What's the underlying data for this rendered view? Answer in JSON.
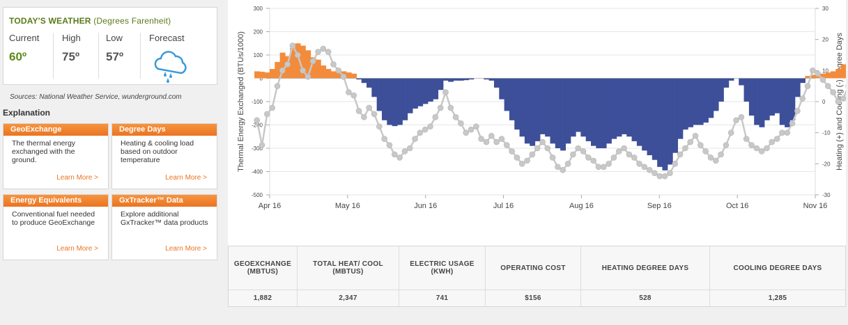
{
  "weather": {
    "title": "TODAY'S WEATHER",
    "subtitle": "(Degrees Farenheit)",
    "current_label": "Current",
    "current_value": "60º",
    "high_label": "High",
    "high_value": "75º",
    "low_label": "Low",
    "low_value": "57º",
    "forecast_label": "Forecast",
    "forecast_icon": "rain-cloud-icon",
    "sources": "Sources: National Weather Service, wunderground.com"
  },
  "explanation": {
    "title": "Explanation",
    "cards": [
      {
        "title": "GeoExchange",
        "body": "The thermal energy exchanged with the ground.",
        "more": "Learn More >"
      },
      {
        "title": "Degree Days",
        "body": "Heating & cooling load based on outdoor temperature",
        "more": "Learn More >"
      },
      {
        "title": "Energy Equivalents",
        "body": "Conventional fuel needed to produce GeoExchange",
        "more": "Learn More >"
      },
      {
        "title": "GxTracker™ Data",
        "body": "Explore additional GxTracker™ data products",
        "more": "Learn More >"
      }
    ]
  },
  "colors": {
    "accent_orange": "#ea7422",
    "heating_bar": "#f28c3c",
    "cooling_bar": "#3d4f99",
    "degree_days_marker": "#c8c8c8",
    "weather_green": "#5a7a1a"
  },
  "chart_data": {
    "type": "bar",
    "left_axis": {
      "label": "Thermal Energy Exchanged (BTUs/1000)",
      "min": -500,
      "max": 300,
      "ticks": [
        300,
        200,
        100,
        0,
        -100,
        -200,
        -300,
        -400,
        -500
      ]
    },
    "right_axis": {
      "label": "Heating (+) and Cooling (-) Degree Days",
      "min": -30,
      "max": 30,
      "ticks": [
        30,
        20,
        10,
        0,
        -10,
        -20,
        -30
      ]
    },
    "x_axis": {
      "ticks": [
        "Apr 16",
        "May 16",
        "Jun 16",
        "Jul 16",
        "Aug 16",
        "Sep 16",
        "Oct 16",
        "Nov 16"
      ]
    },
    "grid": true,
    "series": [
      {
        "type": "bar",
        "start": "2016-04-10",
        "values": [
          30,
          28,
          25,
          40,
          70,
          110,
          95,
          130,
          150,
          140,
          120,
          90,
          80,
          55,
          40,
          30,
          25,
          30,
          25,
          20,
          -5,
          -20,
          -40,
          -80,
          -140,
          -180,
          -200,
          -205,
          -200,
          -180,
          -150,
          -130,
          -120,
          -110,
          -100,
          -90,
          -50,
          -10,
          -15,
          -10,
          -10,
          -8,
          -5,
          null,
          null,
          -5,
          -10,
          -40,
          -90,
          -140,
          -180,
          -220,
          -250,
          -280,
          -290,
          -270,
          -240,
          -250,
          -280,
          -300,
          -310,
          -280,
          -250,
          -230,
          -250,
          -270,
          -290,
          -300,
          -300,
          -280,
          -260,
          -250,
          -240,
          -250,
          -270,
          -290,
          -310,
          -330,
          -350,
          -380,
          -395,
          -370,
          -320,
          -260,
          -220,
          -210,
          -200,
          -200,
          -190,
          -170,
          -140,
          -100,
          -40,
          -10,
          null,
          -30,
          -100,
          -160,
          -200,
          -210,
          -180,
          -160,
          -150,
          -200,
          -210,
          -180,
          -80,
          -20,
          10,
          15,
          20,
          20,
          25,
          30,
          40,
          60,
          70,
          80,
          60,
          30,
          15
        ]
      },
      {
        "type": "scatter",
        "start": "2016-04-10",
        "values": [
          -6,
          -14,
          -4,
          -2,
          5,
          10,
          12,
          18,
          15,
          10,
          8,
          13,
          16,
          17,
          16,
          12,
          10,
          8,
          3,
          2,
          -3,
          -5,
          -2,
          -4,
          -8,
          -12,
          -14,
          -17,
          -18,
          -16,
          -15,
          -12,
          -10,
          -9,
          -8,
          -5,
          -2,
          3,
          -2,
          -5,
          -7,
          -10,
          -9,
          -8,
          -12,
          -13,
          -11,
          -13,
          -12,
          -14,
          -16,
          -18,
          -20,
          -19,
          -17,
          -15,
          -13,
          -15,
          -18,
          -21,
          -22,
          -20,
          -17,
          -15,
          -16,
          -18,
          -19,
          -21,
          -21,
          -20,
          -18,
          -16,
          -15,
          -17,
          -18,
          -20,
          -21,
          -22,
          -23,
          -24,
          -24,
          -23,
          -20,
          -17,
          -15,
          -13,
          -11,
          -14,
          -16,
          -18,
          -19,
          -17,
          -14,
          -10,
          -6,
          -5,
          -12,
          -14,
          -15,
          -16,
          -15,
          -13,
          -12,
          -10,
          -10,
          -7,
          -3,
          1,
          5,
          10,
          9,
          7,
          5,
          3,
          0,
          1,
          5,
          10,
          15,
          12,
          7,
          3,
          0,
          -2,
          -5,
          -6,
          -4
        ]
      }
    ]
  },
  "stats": {
    "headers": [
      "GEOEXCHANGE (MBTUS)",
      "TOTAL HEAT/ COOL (MBTUS)",
      "ELECTRIC USAGE (KWH)",
      "OPERATING COST",
      "HEATING DEGREE DAYS",
      "COOLING DEGREE DAYS"
    ],
    "values": [
      "1,882",
      "2,347",
      "741",
      "$156",
      "528",
      "1,285"
    ]
  }
}
